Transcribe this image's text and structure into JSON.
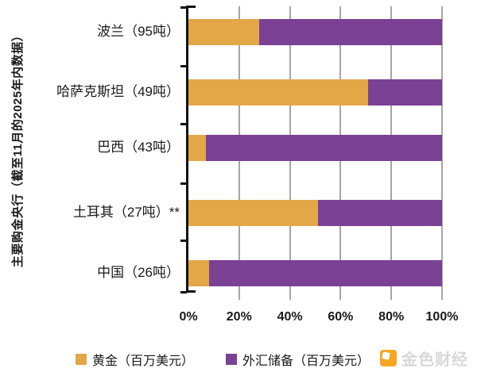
{
  "chart_data": {
    "type": "bar",
    "orientation": "horizontal-stacked",
    "title": "",
    "xlabel": "",
    "ylabel": "主要购金央行（截至11月的2025年内数据）",
    "categories": [
      "波兰（95吨）",
      "哈萨克斯坦（49吨）",
      "巴西（43吨）",
      "土耳其（27吨）**",
      "中国（26吨）"
    ],
    "series": [
      {
        "name": "黄金（百万美元）",
        "color": "#E3A748",
        "values": [
          28,
          71,
          7,
          51,
          8
        ]
      },
      {
        "name": "外汇储备（百万美元）",
        "color": "#7A4195",
        "values": [
          72,
          29,
          93,
          49,
          92
        ]
      }
    ],
    "x_ticks": [
      "0%",
      "20%",
      "40%",
      "60%",
      "80%",
      "100%"
    ],
    "xlim": [
      0,
      100
    ],
    "grid": "vertical",
    "legend_position": "bottom"
  },
  "watermark": {
    "text": "金色财经",
    "icon": "jinse-logo",
    "text_color": "#d8d8d8",
    "icon_color": "#F5A623"
  },
  "colors": {
    "gold": "#E3A748",
    "purple": "#7A4195",
    "gridline": "#a6a6a6",
    "axis": "#111111",
    "text": "#1a1a1a"
  }
}
